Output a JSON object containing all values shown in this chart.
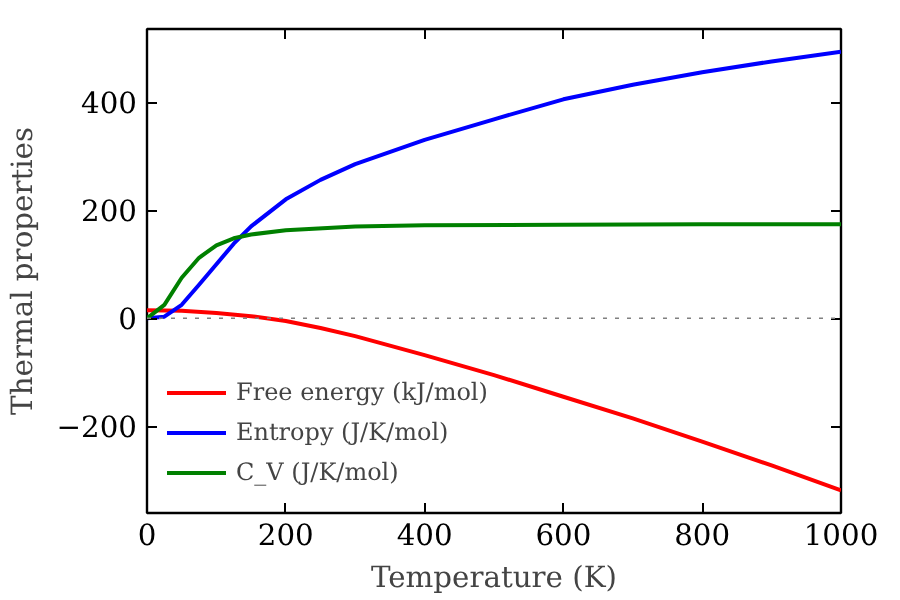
{
  "chart_data": {
    "type": "line",
    "xlabel": "Temperature (K)",
    "ylabel": "Thermal properties",
    "xlim": [
      0,
      1000
    ],
    "xticks": [
      0,
      200,
      400,
      600,
      800,
      1000
    ],
    "ylim": [
      -360,
      535
    ],
    "yticks": [
      {
        "value": -200,
        "label": "−200"
      },
      0,
      200,
      400
    ],
    "grid": false,
    "legend": "bottom left",
    "line_style": "solid",
    "marker": "none",
    "ref_lines": [
      {
        "axis": "y",
        "value": 0,
        "label": null,
        "color": "#808080",
        "line_style": "dotted"
      }
    ],
    "series": [
      {
        "name": "Free energy (kJ/mol)",
        "color": "#ff0000",
        "x": [
          0,
          50,
          100,
          150,
          200,
          250,
          300,
          400,
          500,
          600,
          700,
          800,
          900,
          1000
        ],
        "values": [
          15,
          14,
          10,
          4,
          -5,
          -18,
          -33,
          -68,
          -105,
          -145,
          -185,
          -228,
          -272,
          -318
        ]
      },
      {
        "name": "Entropy (J/K/mol)",
        "color": "#0000ff",
        "x": [
          0,
          25,
          50,
          75,
          100,
          125,
          150,
          200,
          250,
          300,
          400,
          500,
          600,
          700,
          800,
          900,
          1000
        ],
        "values": [
          0,
          3,
          25,
          62,
          100,
          138,
          170,
          220,
          256,
          285,
          330,
          368,
          405,
          432,
          455,
          475,
          493
        ]
      },
      {
        "name": "C_V (J/K/mol)",
        "color": "#008000",
        "x": [
          0,
          25,
          50,
          75,
          100,
          125,
          150,
          200,
          300,
          400,
          600,
          800,
          1000
        ],
        "values": [
          0,
          25,
          75,
          112,
          135,
          148,
          155,
          163,
          170,
          172,
          173,
          174,
          174
        ]
      }
    ]
  }
}
